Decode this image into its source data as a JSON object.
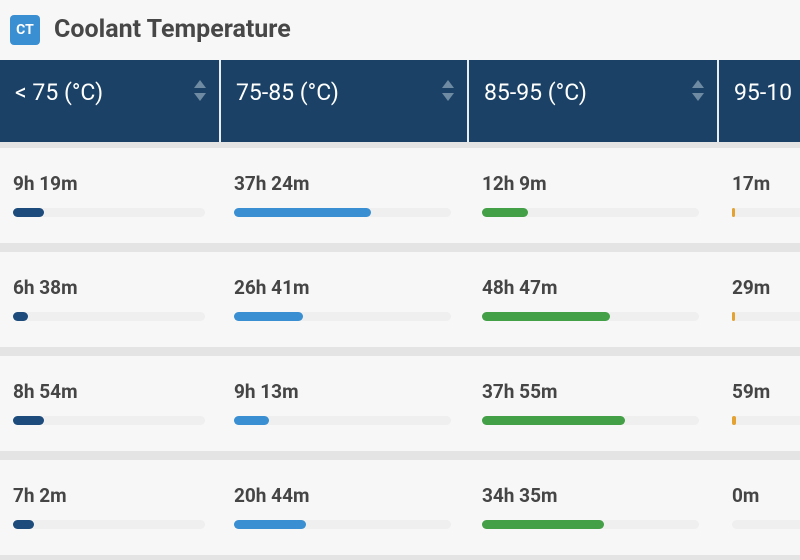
{
  "header": {
    "badge": "CT",
    "title": "Coolant Temperature"
  },
  "table": {
    "columns": [
      {
        "label": "< 75 (°C)",
        "color": "#1c4b7c"
      },
      {
        "label": "75-85 (°C)",
        "color": "#3a8fd2"
      },
      {
        "label": "85-95 (°C)",
        "color": "#43a047"
      },
      {
        "label": "95-10",
        "color": "#e3a232"
      }
    ],
    "rows": [
      {
        "cells": [
          {
            "time": "9h 19m",
            "share": 16
          },
          {
            "time": "37h 24m",
            "share": 63
          },
          {
            "time": "12h 9m",
            "share": 21
          },
          {
            "time": "17m",
            "share": 0.5
          }
        ]
      },
      {
        "cells": [
          {
            "time": "6h 38m",
            "share": 8
          },
          {
            "time": "26h 41m",
            "share": 32
          },
          {
            "time": "48h 47m",
            "share": 59
          },
          {
            "time": "29m",
            "share": 0.6
          }
        ]
      },
      {
        "cells": [
          {
            "time": "8h 54m",
            "share": 16
          },
          {
            "time": "9h 13m",
            "share": 16
          },
          {
            "time": "37h 55m",
            "share": 66
          },
          {
            "time": "59m",
            "share": 1.8
          }
        ]
      },
      {
        "cells": [
          {
            "time": "7h 2m",
            "share": 11
          },
          {
            "time": "20h 44m",
            "share": 33
          },
          {
            "time": "34h 35m",
            "share": 56
          },
          {
            "time": "0m",
            "share": 0
          }
        ]
      }
    ]
  }
}
